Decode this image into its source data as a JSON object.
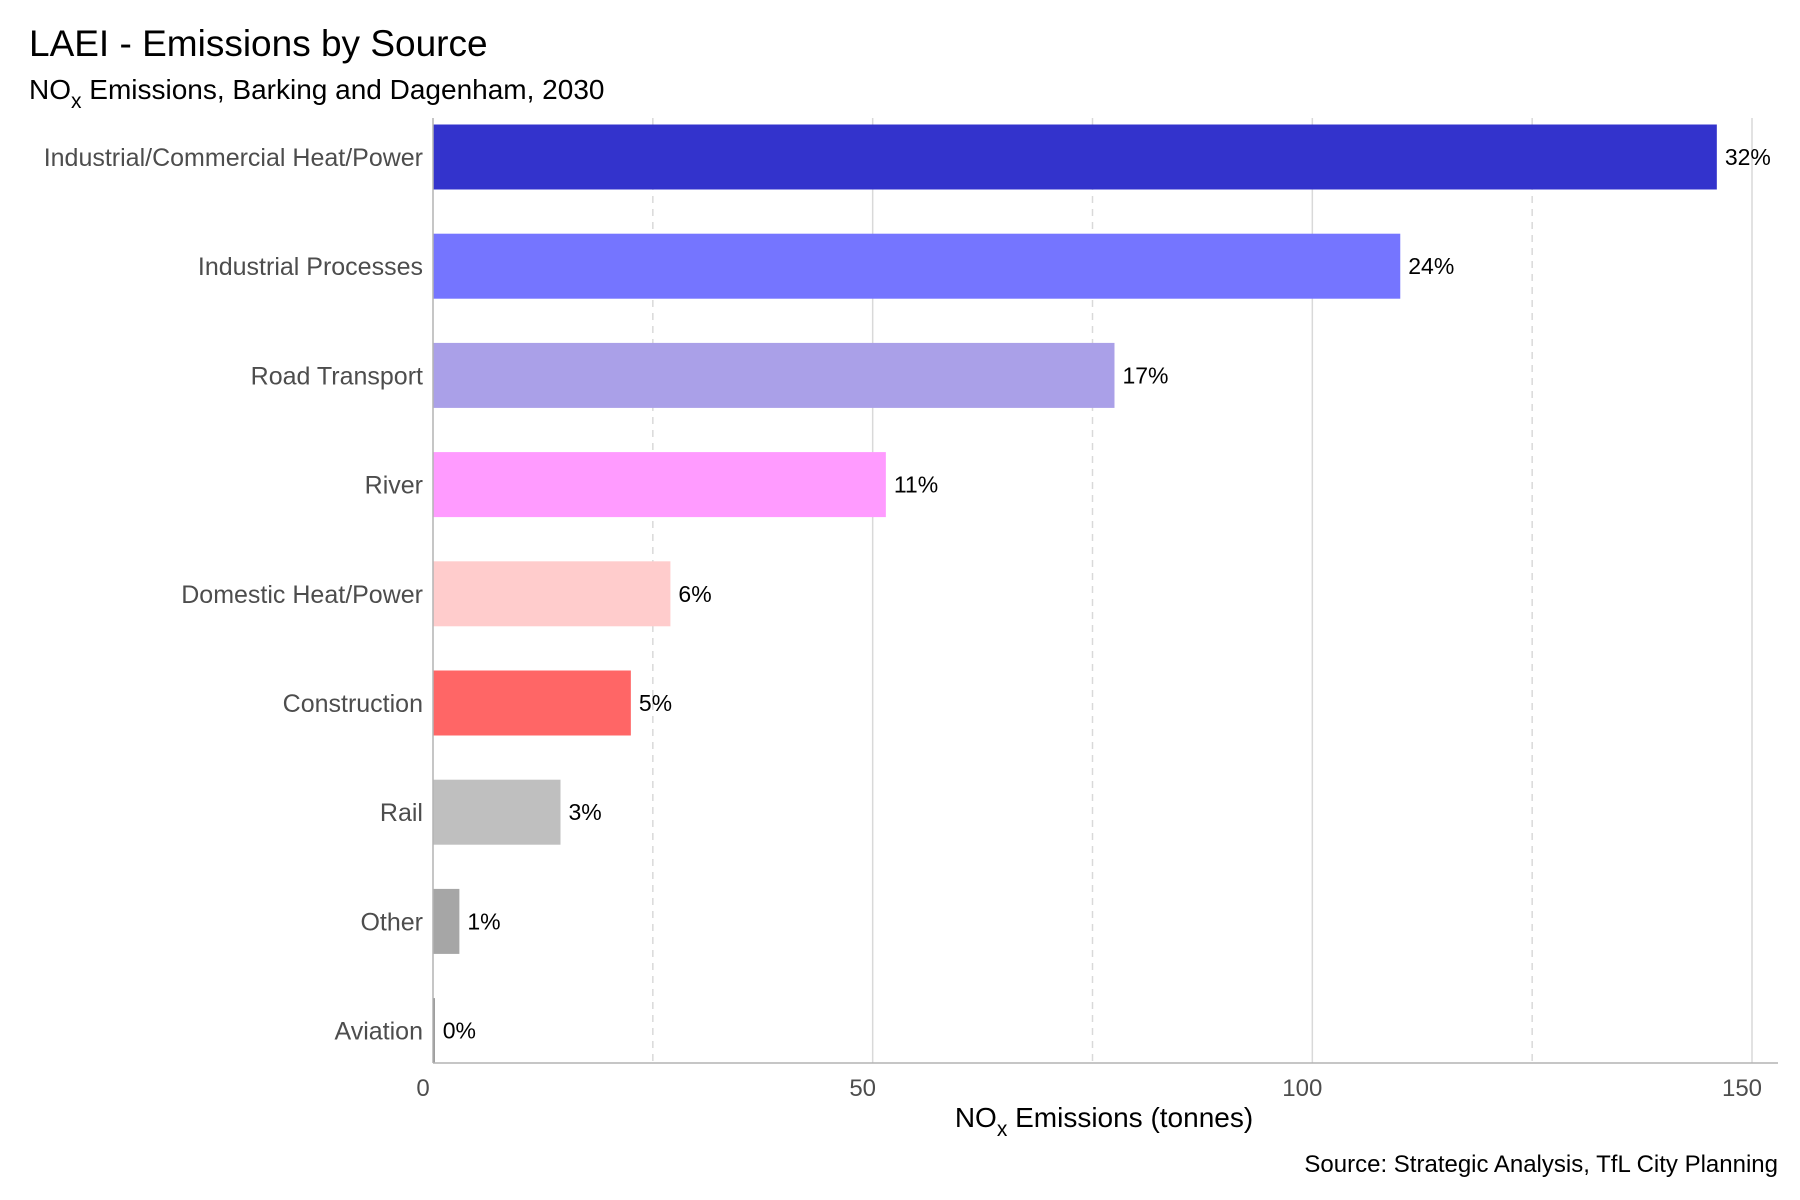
{
  "chart_data": {
    "type": "bar",
    "orientation": "horizontal",
    "title": "LAEI - Emissions by Source",
    "subtitle": {
      "prefix": "NO",
      "subscript": "x",
      "suffix": " Emissions, Barking and Dagenham, 2030"
    },
    "xlabel": {
      "prefix": "NO",
      "subscript": "x",
      "suffix": " Emissions (tonnes)"
    },
    "caption": "Source: Strategic Analysis, TfL City Planning",
    "categories": [
      "Industrial/Commercial Heat/Power",
      "Industrial Processes",
      "Road Transport",
      "River",
      "Domestic Heat/Power",
      "Construction",
      "Rail",
      "Other",
      "Aviation"
    ],
    "values": [
      146,
      110,
      77.5,
      51.5,
      27,
      22.5,
      14.5,
      3,
      0.2
    ],
    "labels": [
      "32%",
      "24%",
      "17%",
      "11%",
      "6%",
      "5%",
      "3%",
      "1%",
      "0%"
    ],
    "colors": [
      "#3333CC",
      "#7575FF",
      "#AAA0E8",
      "#FF9BFF",
      "#FFCCCC",
      "#FF6666",
      "#BFBFBF",
      "#A6A6A6",
      "#808080"
    ],
    "xlim": [
      0,
      152
    ],
    "xticks": [
      0,
      50,
      100,
      150
    ],
    "minor_gridlines": [
      25,
      75,
      125
    ],
    "grid": true,
    "legend": "none"
  }
}
